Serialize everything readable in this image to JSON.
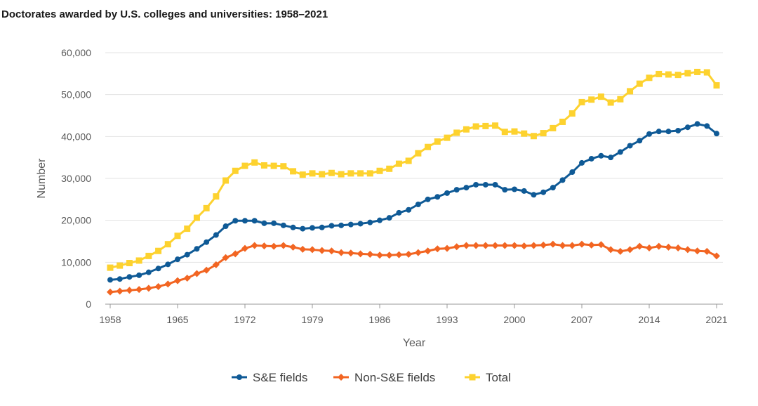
{
  "chart_data": {
    "type": "line",
    "title": "Doctorates awarded by U.S. colleges and universities: 1958–2021",
    "xlabel": "Year",
    "ylabel": "Number",
    "xlim": [
      1958,
      2021
    ],
    "ylim": [
      0,
      60000
    ],
    "x_ticks": [
      1958,
      1965,
      1972,
      1979,
      1986,
      1993,
      2000,
      2007,
      2014,
      2021
    ],
    "y_ticks": [
      0,
      10000,
      20000,
      30000,
      40000,
      50000,
      60000
    ],
    "x_tick_labels": [
      "1958",
      "1965",
      "1972",
      "1979",
      "1986",
      "1993",
      "2000",
      "2007",
      "2014",
      "2021"
    ],
    "y_tick_labels": [
      "0",
      "10,000",
      "20,000",
      "30,000",
      "40,000",
      "50,000",
      "60,000"
    ],
    "grid": "horizontal",
    "legend_position": "bottom-center",
    "x": [
      1958,
      1959,
      1960,
      1961,
      1962,
      1963,
      1964,
      1965,
      1966,
      1967,
      1968,
      1969,
      1970,
      1971,
      1972,
      1973,
      1974,
      1975,
      1976,
      1977,
      1978,
      1979,
      1980,
      1981,
      1982,
      1983,
      1984,
      1985,
      1986,
      1987,
      1988,
      1989,
      1990,
      1991,
      1992,
      1993,
      1994,
      1995,
      1996,
      1997,
      1998,
      1999,
      2000,
      2001,
      2002,
      2003,
      2004,
      2005,
      2006,
      2007,
      2008,
      2009,
      2010,
      2011,
      2012,
      2013,
      2014,
      2015,
      2016,
      2017,
      2018,
      2019,
      2020,
      2021
    ],
    "series": [
      {
        "name": "S&E fields",
        "color": "#0f5a96",
        "marker": "circle",
        "values": [
          5800,
          6000,
          6500,
          6900,
          7600,
          8500,
          9500,
          10700,
          11800,
          13200,
          14800,
          16500,
          18600,
          19900,
          19900,
          19900,
          19300,
          19300,
          18800,
          18300,
          18000,
          18200,
          18300,
          18700,
          18800,
          19000,
          19200,
          19500,
          20000,
          20600,
          21800,
          22500,
          23800,
          25000,
          25600,
          26500,
          27300,
          27800,
          28500,
          28500,
          28500,
          27300,
          27400,
          27000,
          26100,
          26700,
          27800,
          29600,
          31500,
          33700,
          34700,
          35400,
          35000,
          36300,
          37800,
          39000,
          40600,
          41200,
          41200,
          41400,
          42200,
          43000,
          42500,
          40700
        ]
      },
      {
        "name": "Non-S&E fields",
        "color": "#f26522",
        "marker": "diamond",
        "values": [
          2900,
          3100,
          3300,
          3500,
          3800,
          4200,
          4800,
          5600,
          6200,
          7300,
          8100,
          9400,
          11100,
          12000,
          13300,
          14000,
          13900,
          13800,
          14000,
          13600,
          13100,
          13000,
          12800,
          12700,
          12300,
          12200,
          12000,
          11900,
          11700,
          11700,
          11800,
          11900,
          12300,
          12700,
          13200,
          13300,
          13700,
          14000,
          14000,
          14000,
          14000,
          14000,
          14000,
          13900,
          14000,
          14100,
          14300,
          14000,
          14000,
          14300,
          14100,
          14200,
          13000,
          12600,
          13000,
          13800,
          13400,
          13800,
          13600,
          13400,
          13000,
          12700,
          12600,
          11500
        ]
      },
      {
        "name": "Total",
        "color": "#fdd22f",
        "marker": "square",
        "values": [
          8700,
          9200,
          9800,
          10400,
          11500,
          12700,
          14300,
          16300,
          18000,
          20600,
          22900,
          25700,
          29500,
          31800,
          33000,
          33800,
          33100,
          33000,
          32900,
          31700,
          30900,
          31200,
          31000,
          31300,
          31000,
          31200,
          31200,
          31200,
          31800,
          32300,
          33500,
          34200,
          36000,
          37500,
          38800,
          39700,
          40900,
          41700,
          42400,
          42500,
          42600,
          41100,
          41200,
          40700,
          40100,
          40800,
          42000,
          43500,
          45500,
          48200,
          48800,
          49500,
          48100,
          48900,
          50800,
          52600,
          54000,
          54900,
          54800,
          54700,
          55100,
          55400,
          55300,
          52200
        ]
      }
    ]
  }
}
